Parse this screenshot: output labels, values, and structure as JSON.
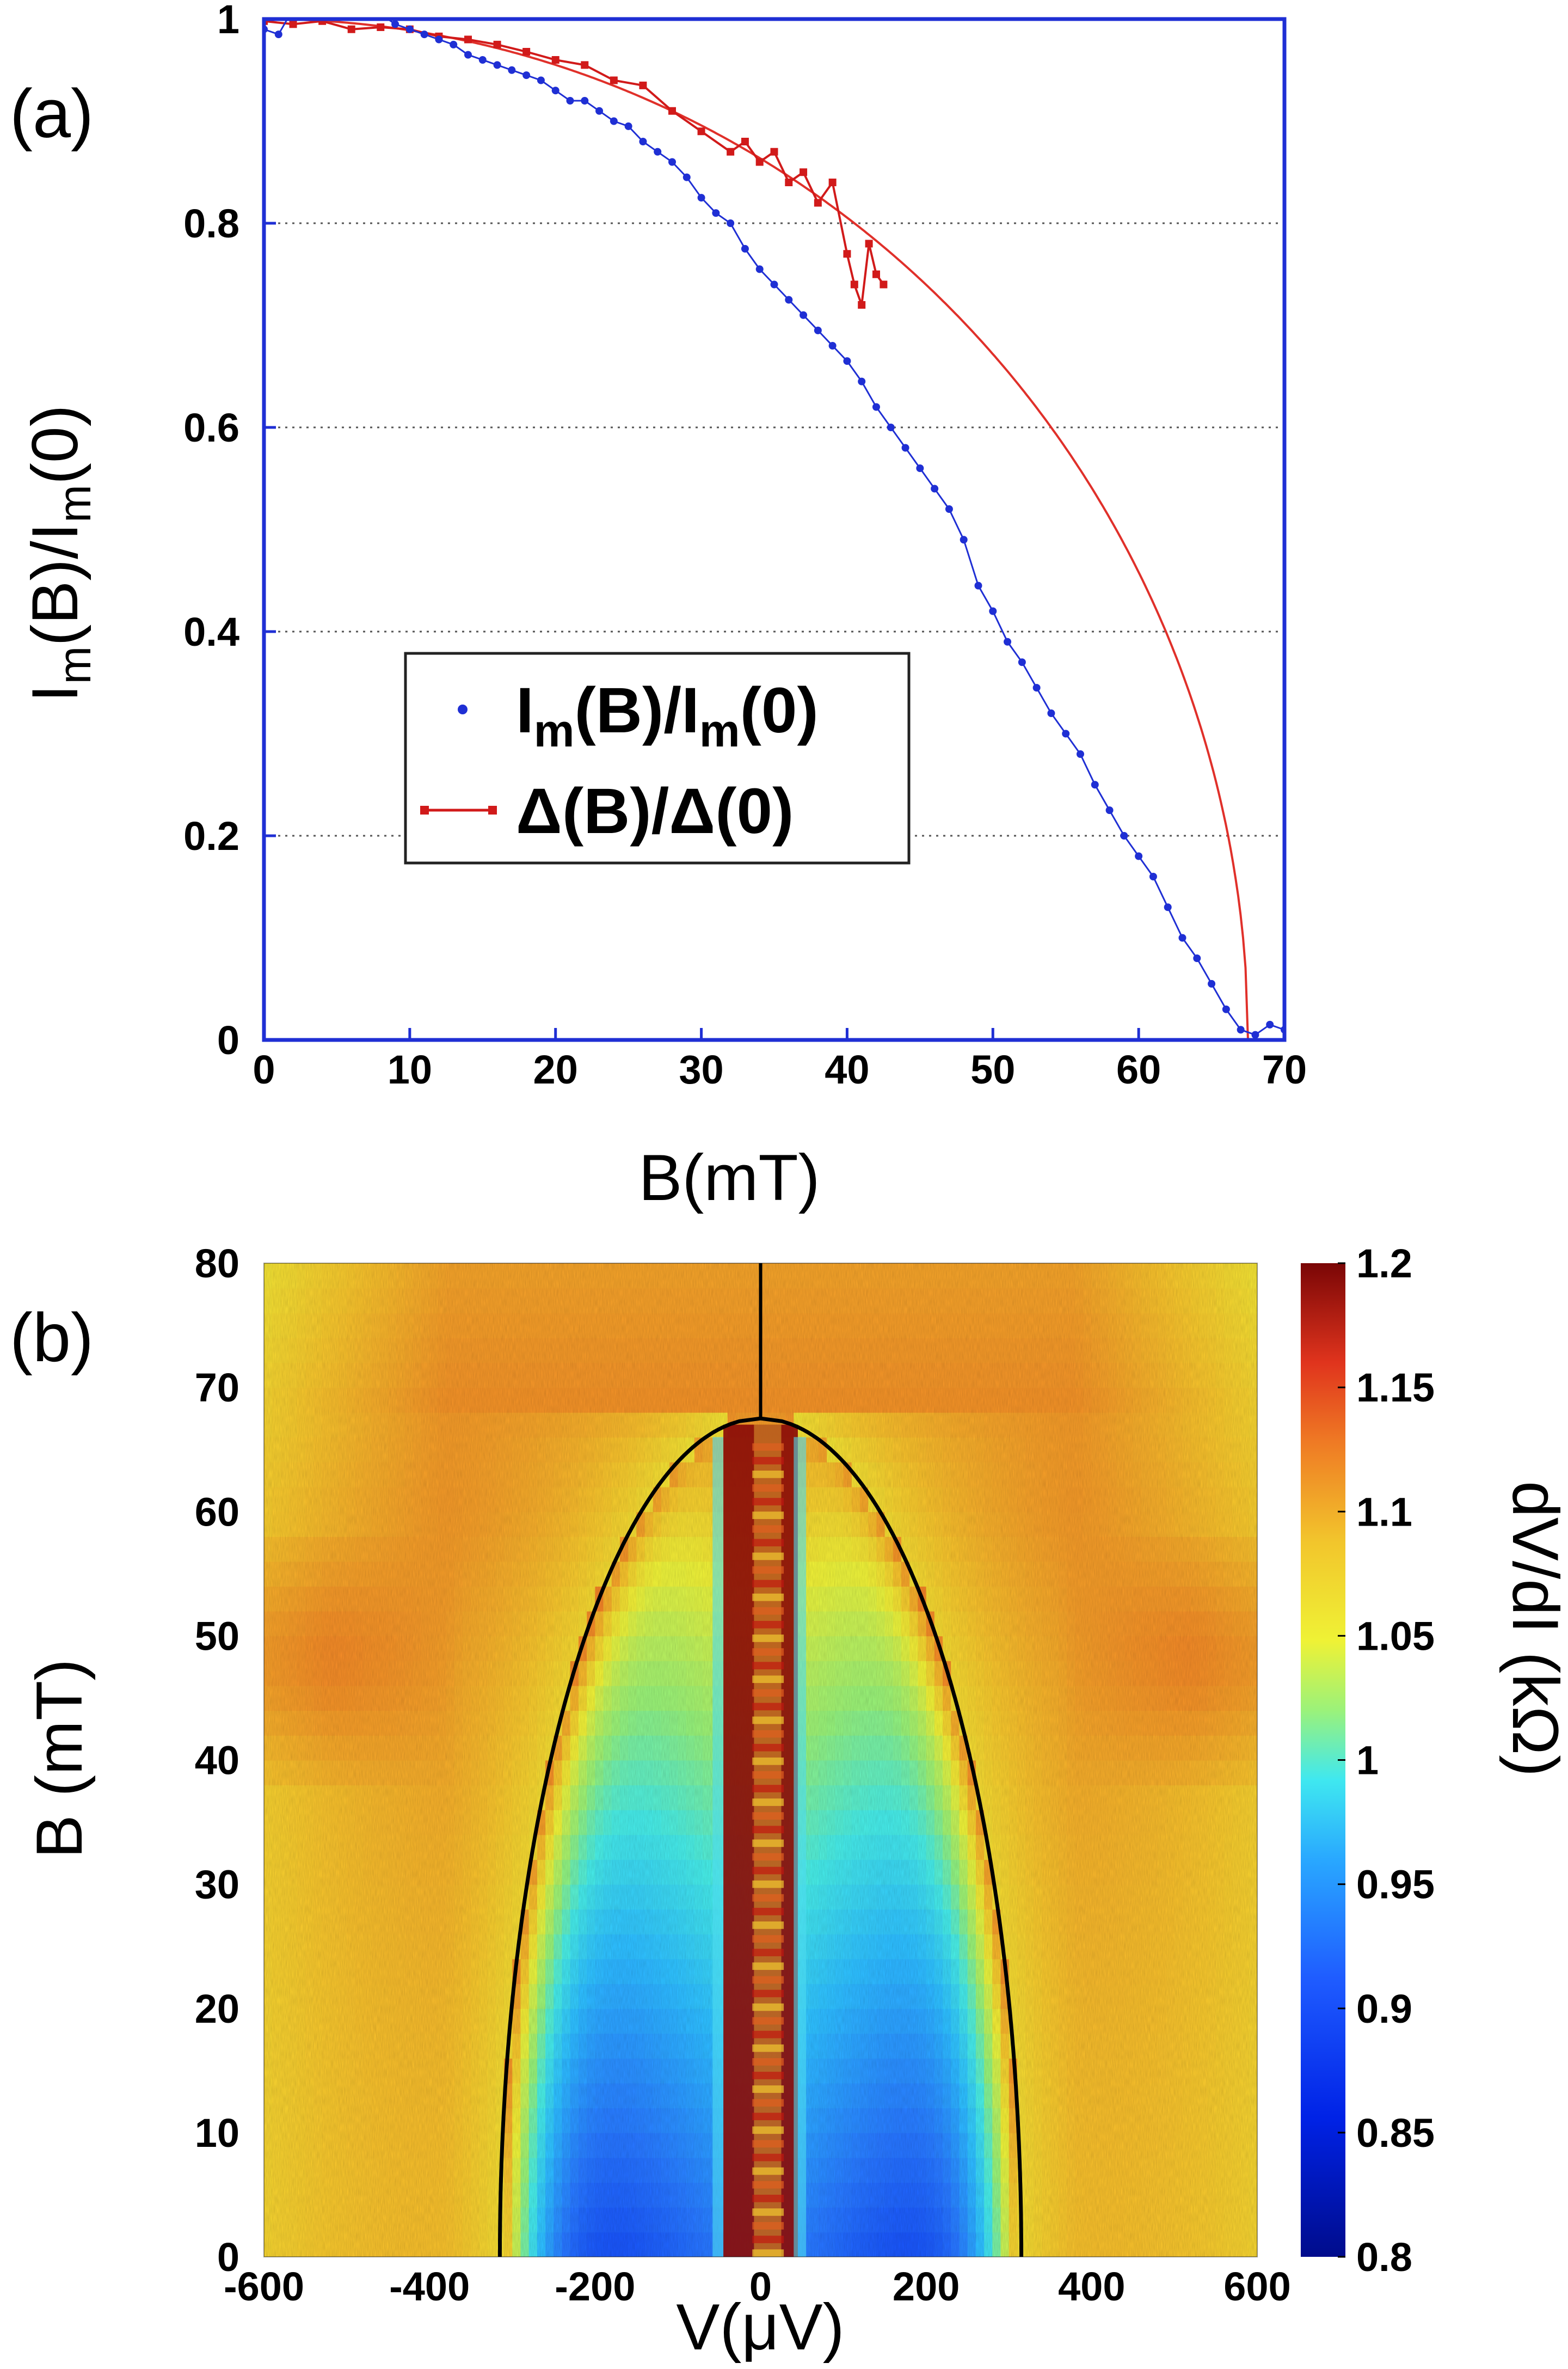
{
  "chart_data": [
    {
      "panel_label": "(a)",
      "type": "line",
      "xlabel": "B(mT)",
      "ylabel_parts": [
        "I",
        "m",
        "(B)/I",
        "m",
        "(0)"
      ],
      "xlim": [
        0,
        70
      ],
      "ylim": [
        0,
        1
      ],
      "xticks": [
        "0",
        "10",
        "20",
        "30",
        "40",
        "50",
        "60",
        "70"
      ],
      "xtick_values": [
        0,
        10,
        20,
        30,
        40,
        50,
        60,
        70
      ],
      "yticks": [
        "0",
        "0.2",
        "0.4",
        "0.6",
        "0.8",
        "1"
      ],
      "ytick_values": [
        0,
        0.2,
        0.4,
        0.6,
        0.8,
        1
      ],
      "grid": "horizontal dotted",
      "legend_position": "center-left",
      "colors": {
        "frame": "#1f2fd4",
        "im_series": "#1f2fd4",
        "gap_series": "#d11a1a",
        "gap_fit": "#e0302a"
      },
      "series": [
        {
          "name": "Im(B)/Im(0)",
          "legend_parts": [
            "I",
            "m",
            "(B)/I",
            "m",
            "(0)"
          ],
          "style": "blue dots with line",
          "x": [
            0,
            1,
            2,
            3,
            4,
            5,
            6,
            7,
            8,
            9,
            10,
            11,
            12,
            13,
            14,
            15,
            16,
            17,
            18,
            19,
            20,
            21,
            22,
            23,
            24,
            25,
            26,
            27,
            28,
            29,
            30,
            31,
            32,
            33,
            34,
            35,
            36,
            37,
            38,
            39,
            40,
            41,
            42,
            43,
            44,
            45,
            46,
            47,
            48,
            49,
            50,
            51,
            52,
            53,
            54,
            55,
            56,
            57,
            58,
            59,
            60,
            61,
            62,
            63,
            64,
            65,
            66,
            67,
            68,
            69,
            70
          ],
          "y": [
            0.99,
            0.985,
            1.01,
            1.01,
            1.005,
            1.005,
            1.01,
            1.01,
            1.005,
            0.995,
            0.99,
            0.985,
            0.98,
            0.975,
            0.965,
            0.96,
            0.955,
            0.95,
            0.945,
            0.94,
            0.93,
            0.92,
            0.92,
            0.91,
            0.9,
            0.895,
            0.88,
            0.87,
            0.86,
            0.845,
            0.825,
            0.81,
            0.8,
            0.775,
            0.755,
            0.74,
            0.725,
            0.71,
            0.695,
            0.68,
            0.665,
            0.645,
            0.62,
            0.6,
            0.58,
            0.56,
            0.54,
            0.52,
            0.49,
            0.445,
            0.42,
            0.39,
            0.37,
            0.345,
            0.32,
            0.3,
            0.28,
            0.25,
            0.225,
            0.2,
            0.18,
            0.16,
            0.13,
            0.1,
            0.08,
            0.055,
            0.03,
            0.01,
            0.005,
            0.015,
            0.01
          ]
        },
        {
          "name": "Δ(B)/Δ(0)",
          "legend_text": "Δ(B)/Δ(0)",
          "style": "red squares with line",
          "x": [
            0,
            2,
            4,
            6,
            8,
            10,
            12,
            14,
            16,
            18,
            20,
            22,
            24,
            26,
            28,
            30,
            32,
            33,
            34,
            35,
            36,
            37,
            38,
            39,
            40,
            40.5,
            41,
            41.5,
            42,
            42.5
          ],
          "y": [
            0.998,
            0.995,
            0.998,
            0.99,
            0.992,
            0.99,
            0.983,
            0.98,
            0.975,
            0.968,
            0.96,
            0.955,
            0.94,
            0.935,
            0.91,
            0.89,
            0.87,
            0.88,
            0.86,
            0.87,
            0.84,
            0.85,
            0.82,
            0.84,
            0.77,
            0.74,
            0.72,
            0.78,
            0.75,
            0.74
          ]
        },
        {
          "name": "BCS gap fit",
          "style": "thin red line",
          "Bc_mT": 67.5
        }
      ]
    },
    {
      "panel_label": "(b)",
      "type": "heatmap",
      "xlabel": "V(μV)",
      "ylabel": "B (mT)",
      "xlim": [
        -600,
        600
      ],
      "ylim": [
        0,
        80
      ],
      "xticks": [
        "-600",
        "-400",
        "-200",
        "0",
        "200",
        "400",
        "600"
      ],
      "xtick_values": [
        -600,
        -400,
        -200,
        0,
        200,
        400,
        600
      ],
      "yticks": [
        "0",
        "10",
        "20",
        "30",
        "40",
        "50",
        "60",
        "70",
        "80"
      ],
      "ytick_values": [
        0,
        10,
        20,
        30,
        40,
        50,
        60,
        70,
        80
      ],
      "colorbar": {
        "label": "dV/dI (kΩ)",
        "range": [
          0.8,
          1.2
        ],
        "ticks": [
          "0.8",
          "0.85",
          "0.9",
          "0.95",
          "1",
          "1.05",
          "1.1",
          "1.15",
          "1.2"
        ],
        "tick_values": [
          0.8,
          0.85,
          0.9,
          0.95,
          1.0,
          1.05,
          1.1,
          1.15,
          1.2
        ]
      },
      "overlay": {
        "description": "gap edge 2Δ(B)/e (black line)",
        "gap_V0_uV": 315,
        "Bc_mT": 67.5
      }
    }
  ]
}
